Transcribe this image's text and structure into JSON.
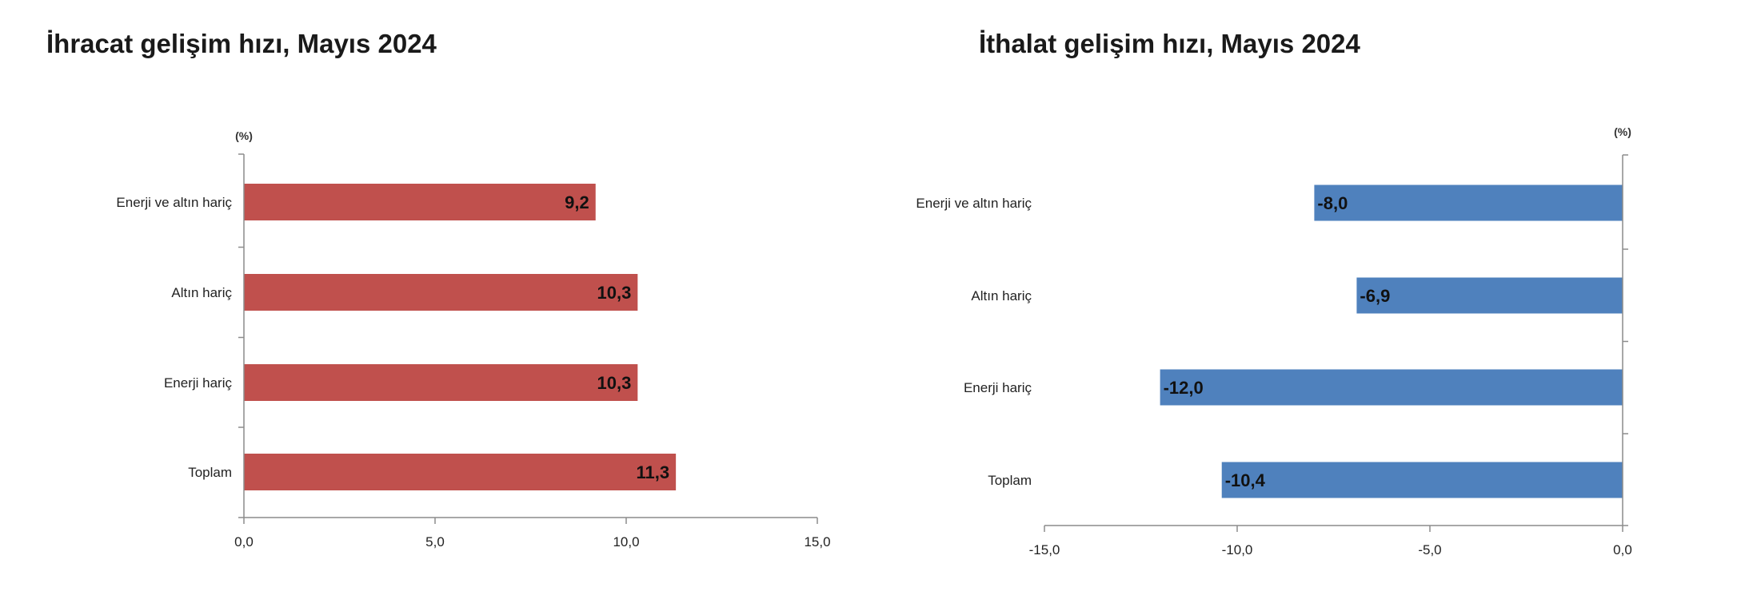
{
  "chart_data": [
    {
      "type": "bar",
      "orientation": "horizontal",
      "title": "İhracat gelişim hızı, Mayıs 2024",
      "unit_label": "(%)",
      "categories": [
        "Enerji ve altın hariç",
        "Altın hariç",
        "Enerji hariç",
        "Toplam"
      ],
      "values": [
        9.2,
        10.3,
        10.3,
        11.3
      ],
      "value_labels": [
        "9,2",
        "10,3",
        "10,3",
        "11,3"
      ],
      "xlim": [
        0,
        15
      ],
      "ticks": [
        0,
        5,
        10,
        15
      ],
      "tick_labels": [
        "0,0",
        "5,0",
        "10,0",
        "15,0"
      ],
      "grid": false,
      "color": "#c0504d"
    },
    {
      "type": "bar",
      "orientation": "horizontal",
      "title": "İthalat gelişim hızı, Mayıs 2024",
      "unit_label": "(%)",
      "categories": [
        "Enerji ve altın hariç",
        "Altın hariç",
        "Enerji hariç",
        "Toplam"
      ],
      "values": [
        -8.0,
        -6.9,
        -12.0,
        -10.4
      ],
      "value_labels": [
        "-8,0",
        "-6,9",
        "-12,0",
        "-10,4"
      ],
      "xlim": [
        -15,
        0
      ],
      "ticks": [
        -15,
        -10,
        -5,
        0
      ],
      "tick_labels": [
        "-15,0",
        "-10,0",
        "-5,0",
        "0,0"
      ],
      "grid": false,
      "color": "#4f81bd"
    }
  ]
}
